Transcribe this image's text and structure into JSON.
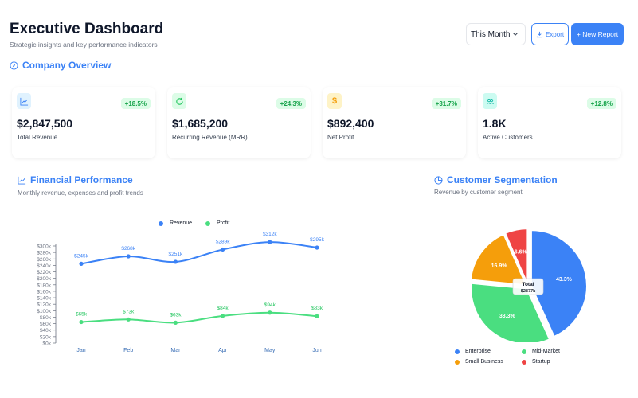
{
  "header": {
    "title": "Executive Dashboard",
    "subtitle": "Strategic insights and key performance indicators",
    "period": "This Month",
    "export_label": "Export",
    "new_report_label": "+ New Report"
  },
  "overview": {
    "title": "Company Overview"
  },
  "kpis": [
    {
      "value": "$2,847,500",
      "label": "Total Revenue",
      "change": "+18.5%",
      "icon": "trend-up-icon",
      "color": "#3b82f6",
      "bg": "#e0f2fe"
    },
    {
      "value": "$1,685,200",
      "label": "Recurring Revenue (MRR)",
      "change": "+24.3%",
      "icon": "refresh-icon",
      "color": "#22c55e",
      "bg": "#dcfce7"
    },
    {
      "value": "$892,400",
      "label": "Net Profit",
      "change": "+31.7%",
      "icon": "dollar-icon",
      "color": "#f59e0b",
      "bg": "#fef3c7"
    },
    {
      "value": "1.8K",
      "label": "Active Customers",
      "change": "+12.8%",
      "icon": "users-icon",
      "color": "#14b8a6",
      "bg": "#ccfbf1"
    }
  ],
  "financial": {
    "title": "Financial Performance",
    "subtitle": "Monthly revenue, expenses and profit trends"
  },
  "segmentation": {
    "title": "Customer Segmentation",
    "subtitle": "Revenue by customer segment"
  },
  "chart_data": [
    {
      "type": "line",
      "title": "Financial Performance",
      "x": [
        "Jan",
        "Feb",
        "Mar",
        "Apr",
        "May",
        "Jun"
      ],
      "ylim": [
        0,
        300
      ],
      "yticks": [
        "$0k",
        "$20k",
        "$40k",
        "$60k",
        "$80k",
        "$100k",
        "$120k",
        "$140k",
        "$160k",
        "$180k",
        "$200k",
        "$220k",
        "$240k",
        "$260k",
        "$280k",
        "$300k"
      ],
      "series": [
        {
          "name": "Revenue",
          "color": "#3b82f6",
          "values": [
            245,
            268,
            251,
            289,
            312,
            295
          ],
          "labels": [
            "$245k",
            "$268k",
            "$251k",
            "$289k",
            "$312k",
            "$295k"
          ]
        },
        {
          "name": "Profit",
          "color": "#4ade80",
          "values": [
            65,
            73,
            63,
            84,
            94,
            83
          ],
          "labels": [
            "$65k",
            "$73k",
            "$63k",
            "$84k",
            "$94k",
            "$83k"
          ]
        }
      ]
    },
    {
      "type": "pie",
      "title": "Customer Segmentation",
      "center_label": "Total",
      "center_value": "$2877k",
      "slices": [
        {
          "name": "Enterprise",
          "value": 43.3,
          "label": "43.3%",
          "color": "#3b82f6"
        },
        {
          "name": "Mid-Market",
          "value": 33.3,
          "label": "33.3%",
          "color": "#4ade80"
        },
        {
          "name": "Small Business",
          "value": 16.9,
          "label": "16.9%",
          "color": "#f59e0b"
        },
        {
          "name": "Startup",
          "value": 6.6,
          "label": "6.6%",
          "color": "#ef4444"
        }
      ]
    }
  ]
}
